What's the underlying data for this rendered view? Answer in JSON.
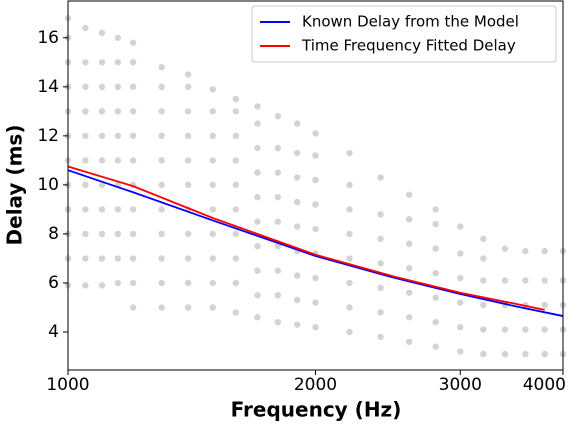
{
  "chart_data": {
    "type": "scatter-line",
    "xlabel": "Frequency (Hz)",
    "ylabel": "Delay (ms)",
    "xscale": "log",
    "xlim": [
      1000,
      4000
    ],
    "xticks": [
      1000,
      2000,
      3000,
      4000
    ],
    "ylim": [
      2.45,
      17.5
    ],
    "yticks": [
      4,
      6,
      8,
      10,
      12,
      14,
      16
    ],
    "scatter_color": "#d3d3d3",
    "columns": [
      {
        "x": 1000,
        "y": [
          5.9,
          7,
          8,
          9,
          10,
          11,
          12,
          13,
          14,
          15,
          16,
          16.8
        ]
      },
      {
        "x": 1050,
        "y": [
          5.9,
          7,
          8,
          9,
          10,
          11,
          12,
          13,
          14,
          15,
          16.4
        ]
      },
      {
        "x": 1100,
        "y": [
          5.9,
          7,
          8,
          9,
          10,
          11,
          12,
          13,
          14,
          15,
          16.2
        ]
      },
      {
        "x": 1150,
        "y": [
          6,
          7,
          8,
          9,
          10,
          11,
          12,
          13,
          14,
          15,
          16
        ]
      },
      {
        "x": 1200,
        "y": [
          5,
          6,
          7,
          8,
          9,
          10,
          11,
          12,
          13,
          14,
          15,
          15.8
        ]
      },
      {
        "x": 1300,
        "y": [
          5,
          6,
          7,
          8,
          9,
          10,
          11,
          12,
          13,
          14,
          14.8
        ]
      },
      {
        "x": 1400,
        "y": [
          5,
          6,
          7,
          8,
          9,
          10,
          11,
          12,
          13,
          14,
          14.5
        ]
      },
      {
        "x": 1500,
        "y": [
          5,
          6,
          7,
          8,
          9,
          10,
          11,
          12,
          13,
          13.9
        ]
      },
      {
        "x": 1600,
        "y": [
          4.8,
          6,
          7,
          8,
          9,
          10,
          11,
          12,
          13,
          13.5
        ]
      },
      {
        "x": 1700,
        "y": [
          4.6,
          5.5,
          6.5,
          7.5,
          8.5,
          9.5,
          10.5,
          11.5,
          12.5,
          13.2
        ]
      },
      {
        "x": 1800,
        "y": [
          4.4,
          5.5,
          6.5,
          7.5,
          8.5,
          9.5,
          10.5,
          11.5,
          12.8
        ]
      },
      {
        "x": 1900,
        "y": [
          4.3,
          5.3,
          6.3,
          7.3,
          8.3,
          9.3,
          10.3,
          11.3,
          12.5
        ]
      },
      {
        "x": 2000,
        "y": [
          4.2,
          5.2,
          6.2,
          7.2,
          8.2,
          9.2,
          10.2,
          11.2,
          12.1
        ]
      },
      {
        "x": 2200,
        "y": [
          4,
          5,
          6,
          7,
          8,
          9,
          10,
          11.3
        ]
      },
      {
        "x": 2400,
        "y": [
          3.8,
          4.8,
          5.8,
          6.8,
          7.8,
          8.8,
          10.3
        ]
      },
      {
        "x": 2600,
        "y": [
          3.6,
          4.6,
          5.6,
          6.6,
          7.6,
          8.6,
          9.6
        ]
      },
      {
        "x": 2800,
        "y": [
          3.4,
          4.4,
          5.4,
          6.4,
          7.4,
          8.4,
          9
        ]
      },
      {
        "x": 3000,
        "y": [
          3.2,
          4.2,
          5.2,
          6.2,
          7.2,
          8.3
        ]
      },
      {
        "x": 3200,
        "y": [
          3.1,
          4.1,
          5.1,
          6.1,
          7,
          7.8
        ]
      },
      {
        "x": 3400,
        "y": [
          3.1,
          4.1,
          5.1,
          6.1,
          7.4
        ]
      },
      {
        "x": 3600,
        "y": [
          3.1,
          4.1,
          5.1,
          6.1,
          7.3
        ]
      },
      {
        "x": 3800,
        "y": [
          3.1,
          4.1,
          5.1,
          6.1,
          7.3
        ]
      },
      {
        "x": 4000,
        "y": [
          3.1,
          4.1,
          5.1,
          6.1,
          7.3
        ]
      }
    ],
    "series": [
      {
        "name": "Known Delay from the Model",
        "color": "#0000ff",
        "x": [
          1000,
          1200,
          1500,
          2000,
          2500,
          3000,
          3500,
          4000
        ],
        "values": [
          10.6,
          9.7,
          8.55,
          7.1,
          6.2,
          5.55,
          5.05,
          4.65
        ]
      },
      {
        "name": "Time Frequency Fitted Delay",
        "color": "#ff0000",
        "x": [
          1000,
          1200,
          1500,
          2000,
          2500,
          3000,
          3500,
          3800
        ],
        "values": [
          10.75,
          9.95,
          8.65,
          7.15,
          6.25,
          5.6,
          5.15,
          4.9
        ]
      }
    ],
    "legend": "upper right"
  }
}
